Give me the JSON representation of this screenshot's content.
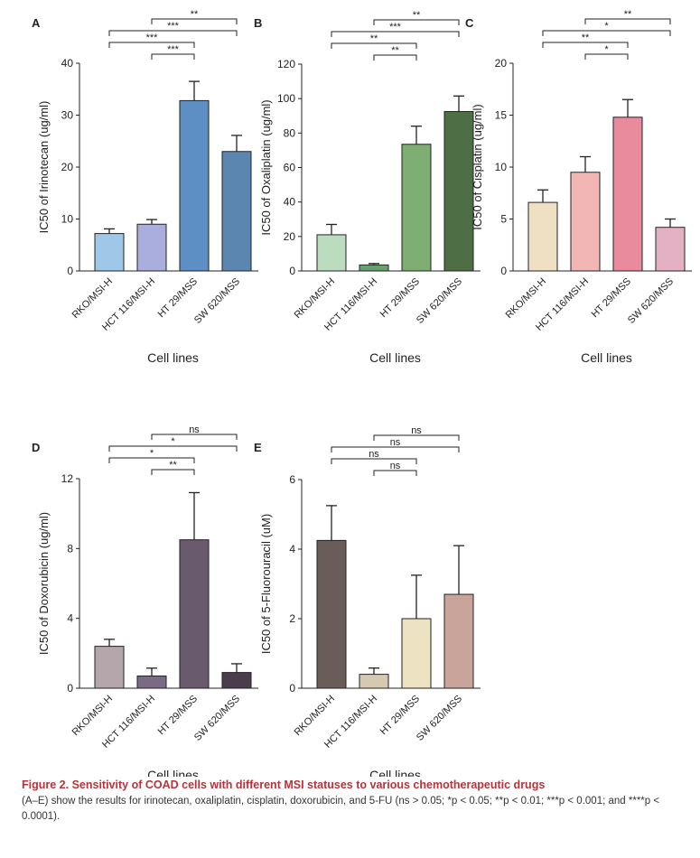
{
  "chart_data": [
    {
      "type": "bar",
      "panel": "A",
      "categories": [
        "RKO/MSI-H",
        "HCT 116/MSI-H",
        "HT 29/MSS",
        "SW 620/MSS"
      ],
      "values": [
        7.2,
        9.0,
        32.8,
        23.0
      ],
      "errors": [
        0.9,
        0.9,
        3.7,
        3.1
      ],
      "colors": [
        "#9ec7e8",
        "#a9aedf",
        "#5d8fc4",
        "#5b86b0"
      ],
      "ylabel": "IC50 of Irinotecan (ug/ml)",
      "xlabel": "Cell lines",
      "ylim": [
        0,
        40
      ],
      "yticks": [
        0,
        10,
        20,
        30,
        40
      ],
      "significance": [
        {
          "from": 1,
          "to": 3,
          "label": "**"
        },
        {
          "from": 0,
          "to": 3,
          "label": "***"
        },
        {
          "from": 0,
          "to": 2,
          "label": "***"
        },
        {
          "from": 1,
          "to": 2,
          "label": "***"
        }
      ]
    },
    {
      "type": "bar",
      "panel": "B",
      "categories": [
        "RKO/MSI-H",
        "HCT 116/MSI-H",
        "HT 29/MSS",
        "SW 620/MSS"
      ],
      "values": [
        21,
        3.5,
        73.5,
        92.5
      ],
      "errors": [
        6,
        0.8,
        10.5,
        9
      ],
      "colors": [
        "#bcdcc0",
        "#6aa070",
        "#7fae72",
        "#4e6e46"
      ],
      "ylabel": "IC50 of Oxaliplatin (ug/ml)",
      "xlabel": "Cell lines",
      "ylim": [
        0,
        120
      ],
      "yticks": [
        0,
        20,
        40,
        60,
        80,
        100,
        120
      ],
      "significance": [
        {
          "from": 1,
          "to": 3,
          "label": "**"
        },
        {
          "from": 0,
          "to": 3,
          "label": "***"
        },
        {
          "from": 0,
          "to": 2,
          "label": "**"
        },
        {
          "from": 1,
          "to": 2,
          "label": "**"
        }
      ]
    },
    {
      "type": "bar",
      "panel": "C",
      "categories": [
        "RKO/MSI-H",
        "HCT 116/MSI-H",
        "HT 29/MSS",
        "SW 620/MSS"
      ],
      "values": [
        6.6,
        9.5,
        14.8,
        4.2
      ],
      "errors": [
        1.2,
        1.5,
        1.7,
        0.8
      ],
      "colors": [
        "#efe0c4",
        "#f2b6b4",
        "#e98b9c",
        "#e4b1c4"
      ],
      "ylabel": "IC50 of Cisplatin (ug/ml)",
      "xlabel": "Cell lines",
      "ylim": [
        0,
        20
      ],
      "yticks": [
        0,
        5,
        10,
        15,
        20
      ],
      "significance": [
        {
          "from": 1,
          "to": 3,
          "label": "**"
        },
        {
          "from": 0,
          "to": 3,
          "label": "*"
        },
        {
          "from": 0,
          "to": 2,
          "label": "**"
        },
        {
          "from": 1,
          "to": 2,
          "label": "*"
        }
      ]
    },
    {
      "type": "bar",
      "panel": "D",
      "categories": [
        "RKO/MSI-H",
        "HCT 116/MSI-H",
        "HT 29/MSS",
        "SW 620/MSS"
      ],
      "values": [
        2.4,
        0.7,
        8.5,
        0.9
      ],
      "errors": [
        0.4,
        0.45,
        2.7,
        0.5
      ],
      "colors": [
        "#b4a6ab",
        "#7a6a84",
        "#6a5a6e",
        "#4b3e4c"
      ],
      "ylabel": "IC50 of Doxorubicin (ug/ml)",
      "xlabel": "Cell lines",
      "ylim": [
        0,
        12
      ],
      "yticks": [
        0,
        4,
        8,
        12
      ],
      "significance": [
        {
          "from": 1,
          "to": 3,
          "label": "ns"
        },
        {
          "from": 0,
          "to": 3,
          "label": "*"
        },
        {
          "from": 0,
          "to": 2,
          "label": "*"
        },
        {
          "from": 1,
          "to": 2,
          "label": "**"
        }
      ]
    },
    {
      "type": "bar",
      "panel": "E",
      "categories": [
        "RKO/MSI-H",
        "HCT 116/MSI-H",
        "HT 29/MSS",
        "SW 620/MSS"
      ],
      "values": [
        4.25,
        0.4,
        2.0,
        2.7
      ],
      "errors": [
        1.0,
        0.18,
        1.25,
        1.4
      ],
      "colors": [
        "#6a5c58",
        "#d6c9b2",
        "#ede3c3",
        "#c8a49b"
      ],
      "ylabel": "IC50 of 5-Fluorouracil (uM)",
      "xlabel": "Cell lines",
      "ylim": [
        0,
        6
      ],
      "yticks": [
        0,
        2,
        4,
        6
      ],
      "significance": [
        {
          "from": 1,
          "to": 3,
          "label": "ns"
        },
        {
          "from": 0,
          "to": 3,
          "label": "ns"
        },
        {
          "from": 0,
          "to": 2,
          "label": "ns"
        },
        {
          "from": 1,
          "to": 2,
          "label": "ns"
        }
      ]
    }
  ],
  "caption": {
    "title": "Figure 2. Sensitivity of COAD cells with different MSI statuses to various chemotherapeutic drugs",
    "body": "(A–E) show the results for irinotecan, oxaliplatin, cisplatin, doxorubicin, and 5-FU (ns > 0.05; *p < 0.05; **p < 0.01; ***p < 0.001; and ****p < 0.0001)."
  }
}
